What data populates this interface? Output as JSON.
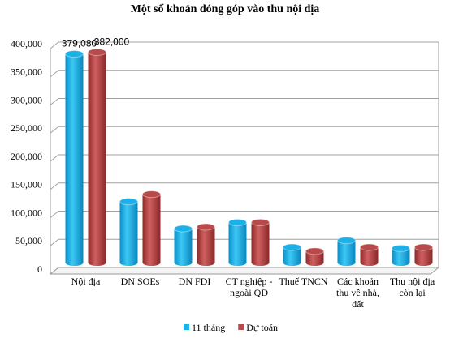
{
  "chart_data": {
    "type": "bar",
    "title": "Một số khoản đóng góp vào thu nội địa",
    "categories": [
      "Nội địa",
      "DN SOEs",
      "DN FDI",
      "CT nghiệp - ngoài QD",
      "Thuế TNCN",
      "Các khoản thu về nhà, đất",
      "Thu nội địa còn lại"
    ],
    "series": [
      {
        "name": "11 tháng",
        "color": "#1ab0e8",
        "values": [
          379080,
          117000,
          69000,
          80000,
          36000,
          48000,
          34000
        ],
        "value_labels": [
          "379,080",
          null,
          null,
          null,
          null,
          null,
          null
        ]
      },
      {
        "name": "Dự toán",
        "color": "#b94a4a",
        "values": [
          382000,
          130000,
          72000,
          80000,
          29000,
          36000,
          36000
        ],
        "value_labels": [
          "382,000",
          null,
          null,
          null,
          null,
          null,
          null
        ]
      }
    ],
    "ylim": [
      0,
      400000
    ],
    "yticks": [
      0,
      {
        "value": 50000,
        "label": "50,000"
      },
      {
        "value": 100000,
        "label": "100,000"
      },
      {
        "value": 150000,
        "label": "150,000"
      },
      {
        "value": 200000,
        "label": "200,000"
      },
      {
        "value": 250000,
        "label": "250,000"
      },
      {
        "value": 300000,
        "label": "300,000"
      },
      {
        "value": 350000,
        "label": "350,000"
      },
      {
        "value": 400000,
        "label": "400,000"
      }
    ],
    "grid": true,
    "legend": "bottom"
  }
}
